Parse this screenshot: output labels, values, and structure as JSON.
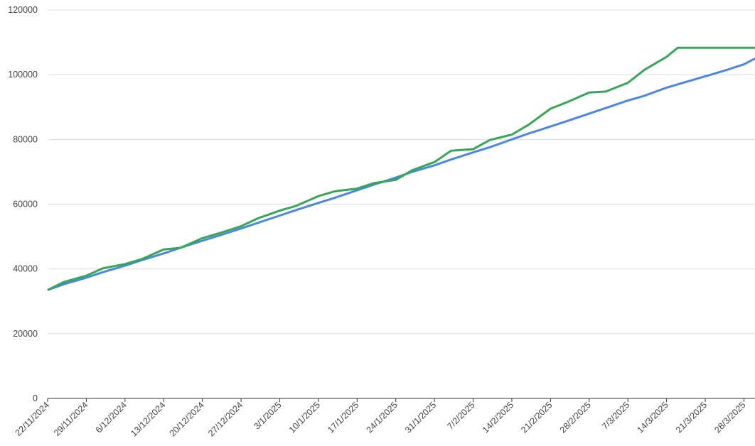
{
  "chart_data": {
    "type": "line",
    "x": [
      "22/11/2024",
      "25/11/2024",
      "29/11/2024",
      "2/12/2024",
      "6/12/2024",
      "9/12/2024",
      "13/12/2024",
      "16/12/2024",
      "20/12/2024",
      "23/12/2024",
      "27/12/2024",
      "30/12/2024",
      "3/1/2025",
      "6/1/2025",
      "10/1/2025",
      "13/1/2025",
      "17/1/2025",
      "20/1/2025",
      "24/1/2025",
      "27/1/2025",
      "31/1/2025",
      "3/2/2025",
      "7/2/2025",
      "10/2/2025",
      "14/2/2025",
      "17/2/2025",
      "21/2/2025",
      "24/2/2025",
      "28/2/2025",
      "3/3/2025",
      "7/3/2025",
      "10/3/2025",
      "14/3/2025",
      "16/3/2025",
      "21/3/2025",
      "24/3/2025",
      "28/3/2025",
      "30/3/2025"
    ],
    "series": [
      {
        "color": "#4a86e8",
        "values": [
          33500,
          35300,
          37300,
          39000,
          41000,
          42700,
          44800,
          46500,
          48700,
          50300,
          52500,
          54200,
          56500,
          58200,
          60400,
          62000,
          64300,
          66000,
          68200,
          70000,
          72000,
          73800,
          76000,
          77600,
          80000,
          81800,
          84000,
          85700,
          88000,
          89700,
          92000,
          93500,
          96000,
          97000,
          99500,
          101000,
          103200,
          105000
        ]
      },
      {
        "color": "#34a853",
        "values": [
          33500,
          36000,
          37900,
          40200,
          41500,
          43000,
          46000,
          46500,
          49500,
          51000,
          53200,
          55600,
          58000,
          59500,
          62500,
          64000,
          64800,
          66500,
          67500,
          70500,
          73000,
          76500,
          77000,
          79800,
          81500,
          84500,
          89500,
          91500,
          94500,
          94800,
          97500,
          101500,
          105500,
          108300,
          108300,
          108300,
          108300,
          108300
        ]
      }
    ],
    "xlim": [
      "22/11/2024",
      "30/3/2025"
    ],
    "xticks": [
      "22/11/2024",
      "29/11/2024",
      "6/12/2024",
      "13/12/2024",
      "20/12/2024",
      "27/12/2024",
      "3/1/2025",
      "10/1/2025",
      "17/1/2025",
      "24/1/2025",
      "31/1/2025",
      "7/2/2025",
      "14/2/2025",
      "21/2/2025",
      "28/2/2025",
      "7/3/2025",
      "14/3/2025",
      "21/3/2025",
      "28/3/2025"
    ],
    "ylim": [
      0,
      120000
    ],
    "yticks": [
      0,
      20000,
      40000,
      60000,
      80000,
      100000,
      120000
    ],
    "grid": true
  }
}
